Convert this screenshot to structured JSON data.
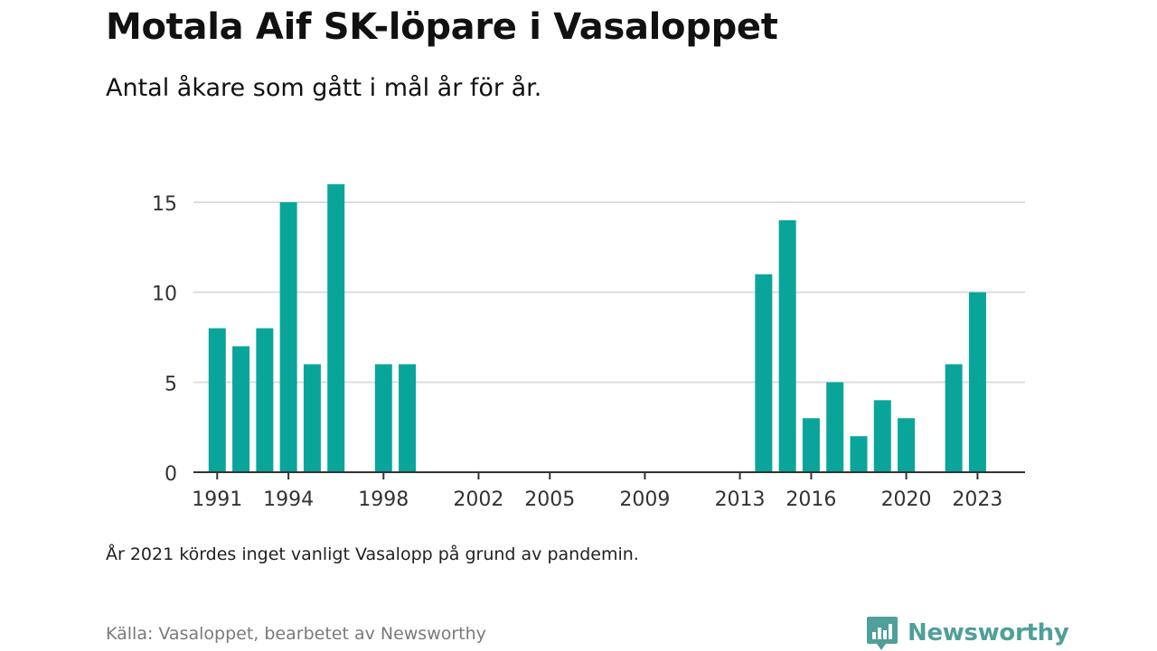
{
  "title": "Motala Aif SK-löpare i Vasaloppet",
  "subtitle": "Antal åkare som gått i mål år för år.",
  "note": "År 2021 kördes inget vanligt Vasalopp på grund av pandemin.",
  "source": "Källa: Vasaloppet, bearbetet av Newsworthy",
  "brand": {
    "name": "Newsworthy",
    "icon": "newsworthy-logo-icon"
  },
  "colors": {
    "bar": "#0aa59a",
    "grid": "#dddddd",
    "axis": "#333333",
    "brand": "#4f9f9a"
  },
  "chart_data": {
    "type": "bar",
    "x": [
      1991,
      1992,
      1993,
      1994,
      1995,
      1996,
      1998,
      1999,
      2014,
      2015,
      2016,
      2017,
      2018,
      2019,
      2020,
      2022,
      2023
    ],
    "values": [
      8,
      7,
      8,
      15,
      6,
      16,
      6,
      6,
      11,
      14,
      3,
      5,
      2,
      4,
      3,
      6,
      10
    ],
    "xticks": [
      1991,
      1994,
      1998,
      2002,
      2005,
      2009,
      2013,
      2016,
      2020,
      2023
    ],
    "yticks": [
      0,
      5,
      10,
      15
    ],
    "xlim": [
      1990,
      2025
    ],
    "ylim": [
      0,
      15
    ],
    "grid": true,
    "legend": "none"
  }
}
